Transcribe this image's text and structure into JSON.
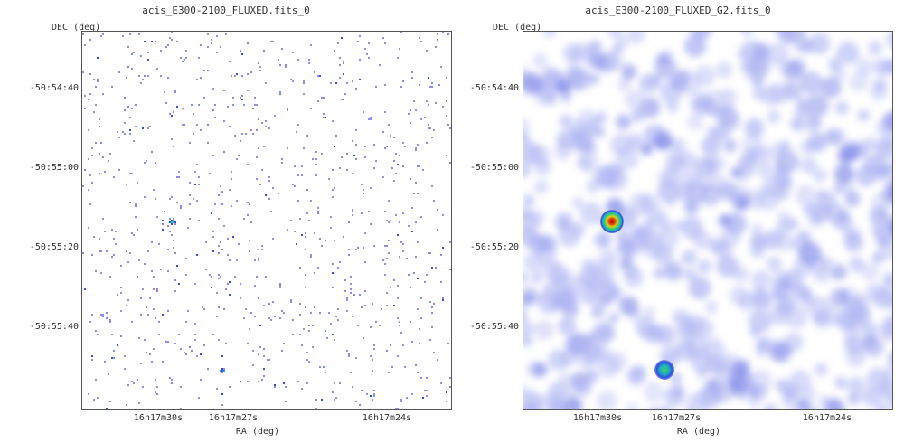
{
  "panels": [
    {
      "title": "acis_E300-2100_FLUXED.fits_0",
      "ylabel": "DEC (deg)",
      "xlabel": "RA (deg)",
      "yticks": [
        "-50:54:40",
        "-50:55:00",
        "-50:55:20",
        "-50:55:40"
      ],
      "xticks": [
        "16h17m30s",
        "16h17m27s",
        "16h17m24s"
      ],
      "style": "raw"
    },
    {
      "title": "acis_E300-2100_FLUXED_G2.fits_0",
      "ylabel": "DEC (deg)",
      "xlabel": "RA (deg)",
      "yticks": [
        "-50:54:40",
        "-50:55:00",
        "-50:55:20",
        "-50:55:40"
      ],
      "xticks": [
        "16h17m30s",
        "16h17m27s",
        "16h17m24s"
      ],
      "style": "smoothed"
    }
  ],
  "colormap": [
    "#ffffff",
    "#8a8cf0",
    "#3050e0",
    "#20b0c0",
    "#40d060",
    "#e0d020",
    "#e04010",
    "#c00000"
  ]
}
